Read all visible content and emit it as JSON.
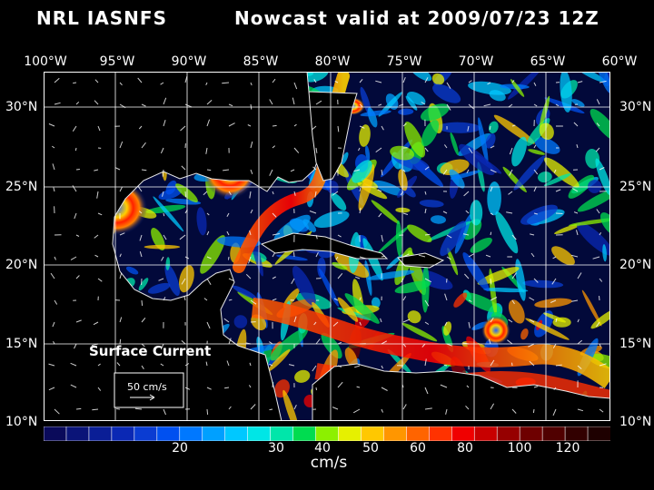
{
  "title": {
    "model": "NRL IASNFS",
    "product": "Nowcast",
    "valid": "valid at 2009/07/23 12Z"
  },
  "lon_labels": [
    "100°W",
    "95°W",
    "90°W",
    "85°W",
    "80°W",
    "75°W",
    "70°W",
    "65°W",
    "60°W"
  ],
  "lat_labels": [
    "30°N",
    "25°N",
    "20°N",
    "15°N",
    "10°N"
  ],
  "map": {
    "field_label": "Surface Current",
    "reference_vector_label": "50 cm/s",
    "background_color": "#000000",
    "grid_color": "#ffffff",
    "coastline_color": "#ffffff"
  },
  "colorbar": {
    "colors": [
      "#0a0a5a",
      "#0a1478",
      "#0a1e96",
      "#0a28b4",
      "#0a3cd2",
      "#0050f0",
      "#0078ff",
      "#00a0ff",
      "#00c8ff",
      "#00e6e6",
      "#00e6aa",
      "#00dc50",
      "#8cf000",
      "#e6f000",
      "#ffc800",
      "#ff9600",
      "#ff6400",
      "#ff3200",
      "#f00000",
      "#c80000",
      "#960000",
      "#6e0000",
      "#500000",
      "#320000",
      "#1e0000"
    ],
    "tick_labels": [
      "20",
      "30",
      "40",
      "50",
      "60",
      "80",
      "100",
      "120"
    ],
    "unit": "cm/s"
  }
}
